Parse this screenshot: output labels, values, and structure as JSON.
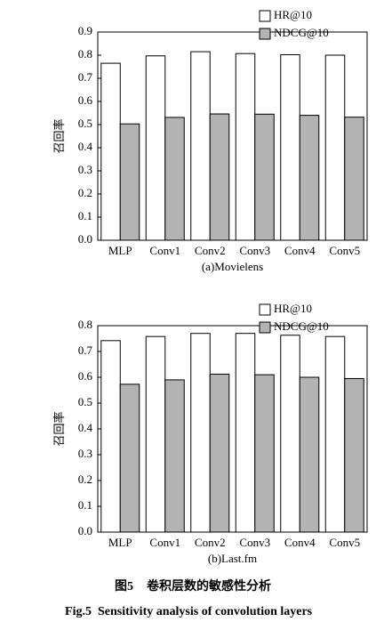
{
  "chart_data": [
    {
      "type": "bar",
      "y_label": "召回率",
      "x_label": "(a)Movielens",
      "legend": "top-right",
      "categories": [
        "MLP",
        "Conv1",
        "Conv2",
        "Conv3",
        "Conv4",
        "Conv5"
      ],
      "series": [
        {
          "name": "HR@10",
          "color": "#ffffff",
          "values": [
            0.765,
            0.797,
            0.815,
            0.807,
            0.802,
            0.8
          ]
        },
        {
          "name": "NDCG@10",
          "color": "#b3b3b3",
          "values": [
            0.503,
            0.531,
            0.546,
            0.545,
            0.54,
            0.532
          ]
        }
      ],
      "ylim": [
        0,
        0.9
      ],
      "yticks": [
        {
          "value": 0,
          "label": "0.0"
        },
        0.1,
        0.2,
        0.3,
        0.4,
        0.5,
        0.6,
        0.7,
        0.8,
        0.9
      ]
    },
    {
      "type": "bar",
      "y_label": "召回率",
      "x_label": "(b)Last.fm",
      "legend": "top-right",
      "categories": [
        "MLP",
        "Conv1",
        "Conv2",
        "Conv3",
        "Conv4",
        "Conv5"
      ],
      "series": [
        {
          "name": "HR@10",
          "color": "#ffffff",
          "values": [
            0.742,
            0.758,
            0.77,
            0.77,
            0.763,
            0.758
          ]
        },
        {
          "name": "NDCG@10",
          "color": "#b3b3b3",
          "values": [
            0.573,
            0.59,
            0.612,
            0.61,
            0.6,
            0.595
          ]
        }
      ],
      "ylim": [
        0,
        0.8
      ],
      "yticks": [
        {
          "value": 0,
          "label": "0.0"
        },
        0.1,
        0.2,
        0.3,
        0.4,
        0.5,
        0.6,
        0.7,
        0.8
      ]
    }
  ],
  "figure": {
    "label_zh": "图5",
    "caption_zh": "卷积层数的敏感性分析",
    "label_en": "Fig.5",
    "caption_en": "Sensitivity analysis of convolution layers"
  }
}
